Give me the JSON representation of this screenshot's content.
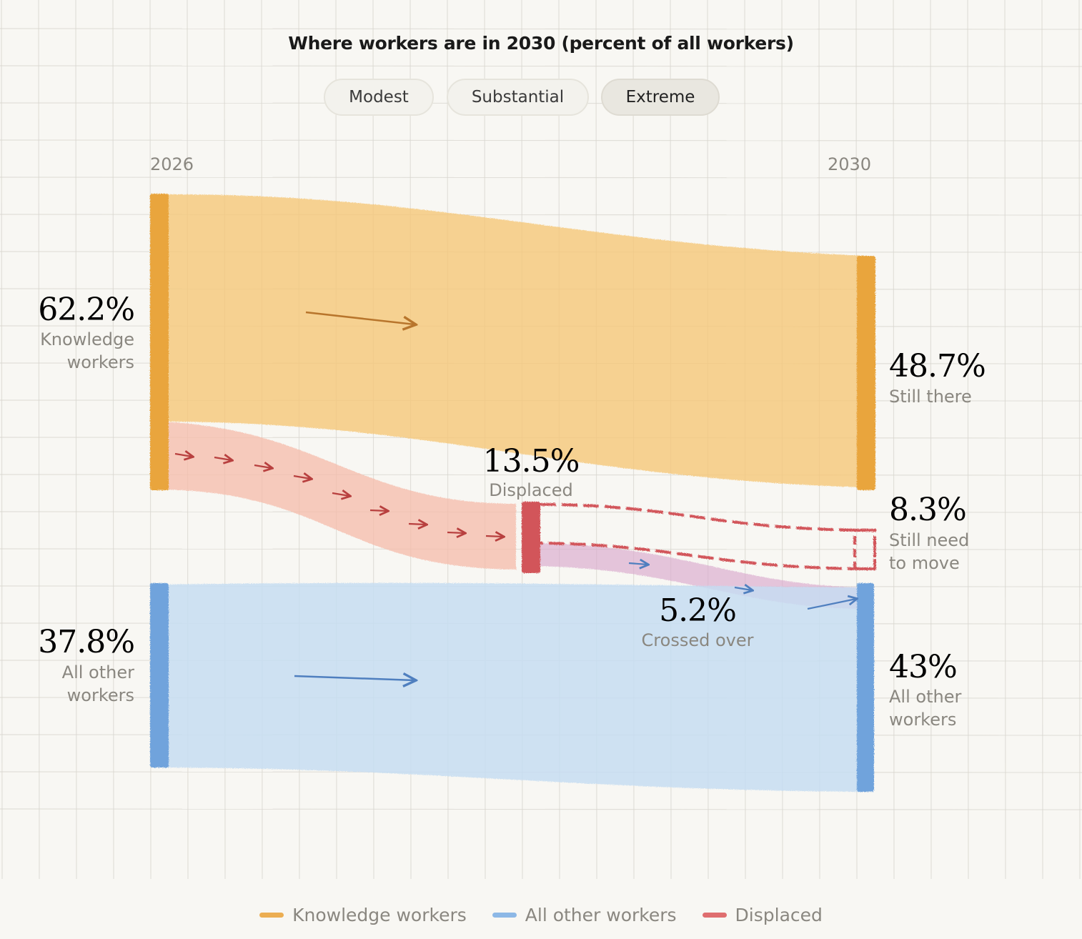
{
  "title": "Where workers are in 2030 (percent of all workers)",
  "scenarios": [
    "Modest",
    "Substantial",
    "Extreme"
  ],
  "active_scenario": "Extreme",
  "colors": {
    "knowledge": "#e9a53e",
    "other": "#6fa3dc",
    "displaced": "#d2555a",
    "crossed": "#b9aee0"
  },
  "chart_data": {
    "type": "sankey",
    "columns": [
      "2026",
      "2030"
    ],
    "nodes": [
      {
        "id": "knowledge_2026",
        "value": "62.2%",
        "label": [
          "Knowledge",
          "workers"
        ]
      },
      {
        "id": "other_2026",
        "value": "37.8%",
        "label": [
          "All other",
          "workers"
        ]
      },
      {
        "id": "displaced",
        "value": "13.5%",
        "label": [
          "Displaced"
        ]
      },
      {
        "id": "still_there",
        "value": "48.7%",
        "label": [
          "Still there"
        ]
      },
      {
        "id": "still_need_to_move",
        "value": "8.3%",
        "label": [
          "Still need",
          "to move"
        ]
      },
      {
        "id": "crossed_over",
        "value": "5.2%",
        "label": [
          "Crossed over"
        ]
      },
      {
        "id": "other_2030",
        "value": "43%",
        "label": [
          "All other",
          "workers"
        ]
      }
    ],
    "flows": [
      {
        "from": "knowledge_2026",
        "to": "still_there",
        "value": 48.7
      },
      {
        "from": "knowledge_2026",
        "to": "displaced",
        "value": 13.5
      },
      {
        "from": "displaced",
        "to": "still_need_to_move",
        "value": 8.3
      },
      {
        "from": "displaced",
        "to": "other_2030",
        "value": 5.2
      },
      {
        "from": "other_2026",
        "to": "other_2030",
        "value": 37.8
      }
    ]
  },
  "legend": [
    "Knowledge workers",
    "All other workers",
    "Displaced"
  ]
}
